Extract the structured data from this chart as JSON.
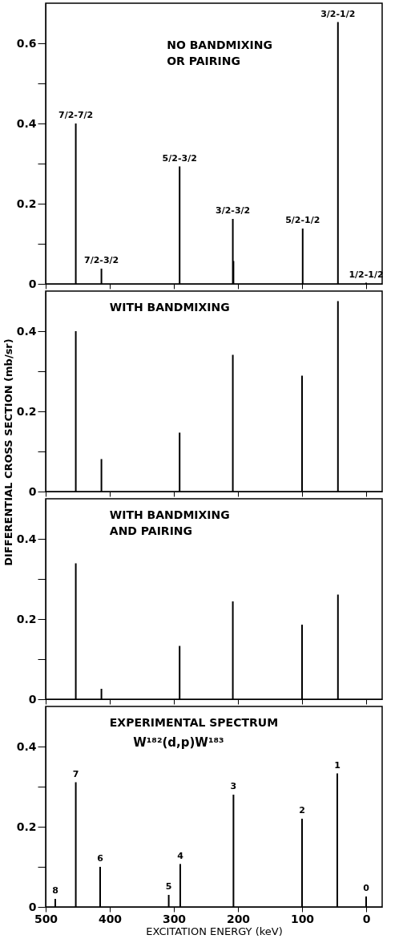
{
  "chart_data": [
    {
      "type": "bar",
      "title": "NO BANDMIXING\nOR PAIRING",
      "ylabel": "DIFFERENTIAL CROSS SECTION (mb/sr)",
      "x": [
        453,
        413,
        291,
        208,
        207,
        99,
        44,
        0
      ],
      "series": [
        {
          "color": "#000000",
          "values": [
            0.4,
            0.038,
            0.293,
            0.162,
            0.057,
            0.138,
            0.653,
            0.003
          ]
        }
      ],
      "annotations": [
        {
          "text": "7/2-7/2",
          "x": 453,
          "y": 0.4
        },
        {
          "text": "7/2-3/2",
          "x": 413,
          "y": 0.038
        },
        {
          "text": "5/2-3/2",
          "x": 291,
          "y": 0.293
        },
        {
          "text": "3/2-3/2",
          "x": 208,
          "y": 0.162
        },
        {
          "text": "5/2-1/2",
          "x": 99,
          "y": 0.138
        },
        {
          "text": "3/2-1/2",
          "x": 44,
          "y": 0.653
        },
        {
          "text": "1/2-1/2",
          "x": 0,
          "y": 0.003
        }
      ],
      "xlim": [
        500,
        -25
      ],
      "xticks": [
        500,
        400,
        300,
        200,
        100,
        0
      ],
      "ylim": [
        0,
        0.7
      ],
      "yticks": [
        0,
        {
          "value": 0.1,
          "label": null
        },
        0.2,
        {
          "value": 0.3,
          "label": null
        },
        0.4,
        {
          "value": 0.5,
          "label": null
        },
        0.6
      ],
      "tick_labels": "y",
      "grid": false
    },
    {
      "type": "bar",
      "title": "WITH BANDMIXING",
      "x": [
        453,
        413,
        291,
        208,
        100,
        44
      ],
      "series": [
        {
          "color": "#000000",
          "values": [
            0.4,
            0.081,
            0.147,
            0.341,
            0.289,
            0.475
          ]
        }
      ],
      "xlim": [
        500,
        -25
      ],
      "xticks": [
        500,
        400,
        300,
        200,
        100,
        0
      ],
      "ylim": [
        0,
        0.5
      ],
      "yticks": [
        0,
        {
          "value": 0.1,
          "label": null
        },
        0.2,
        {
          "value": 0.3,
          "label": null
        },
        0.4
      ],
      "tick_labels": "y",
      "grid": false
    },
    {
      "type": "bar",
      "title": "WITH BANDMIXING\nAND PAIRING",
      "x": [
        453,
        413,
        291,
        208,
        100,
        44
      ],
      "series": [
        {
          "color": "#000000",
          "values": [
            0.339,
            0.026,
            0.133,
            0.244,
            0.186,
            0.261
          ]
        }
      ],
      "xlim": [
        500,
        -25
      ],
      "xticks": [
        500,
        400,
        300,
        200,
        100,
        0
      ],
      "ylim": [
        0,
        0.5
      ],
      "yticks": [
        0,
        {
          "value": 0.1,
          "label": null
        },
        0.2,
        {
          "value": 0.3,
          "label": null
        },
        0.4
      ],
      "tick_labels": "y",
      "grid": false
    },
    {
      "type": "bar",
      "title": "EXPERIMENTAL SPECTRUM",
      "subtitle": "W¹⁸²(d,p)W¹⁸³",
      "xlabel": "EXCITATION ENERGY (keV)",
      "x": [
        485,
        453,
        415,
        308,
        290,
        207,
        100,
        45,
        0
      ],
      "series": [
        {
          "color": "#000000",
          "values": [
            0.02,
            0.311,
            0.1,
            0.03,
            0.107,
            0.28,
            0.22,
            0.333,
            0.026
          ]
        }
      ],
      "annotations": [
        {
          "text": "8",
          "x": 485,
          "y": 0.02
        },
        {
          "text": "7",
          "x": 453,
          "y": 0.311
        },
        {
          "text": "6",
          "x": 415,
          "y": 0.1
        },
        {
          "text": "5",
          "x": 308,
          "y": 0.03
        },
        {
          "text": "4",
          "x": 290,
          "y": 0.107
        },
        {
          "text": "3",
          "x": 207,
          "y": 0.28
        },
        {
          "text": "2",
          "x": 100,
          "y": 0.22
        },
        {
          "text": "1",
          "x": 45,
          "y": 0.333
        },
        {
          "text": "0",
          "x": 0,
          "y": 0.026
        }
      ],
      "xlim": [
        500,
        -25
      ],
      "xticks": [
        500,
        400,
        300,
        200,
        100,
        0
      ],
      "ylim": [
        0,
        0.5
      ],
      "yticks": [
        0,
        {
          "value": 0.1,
          "label": null
        },
        0.2,
        {
          "value": 0.3,
          "label": null
        },
        0.4
      ],
      "grid": false
    }
  ]
}
